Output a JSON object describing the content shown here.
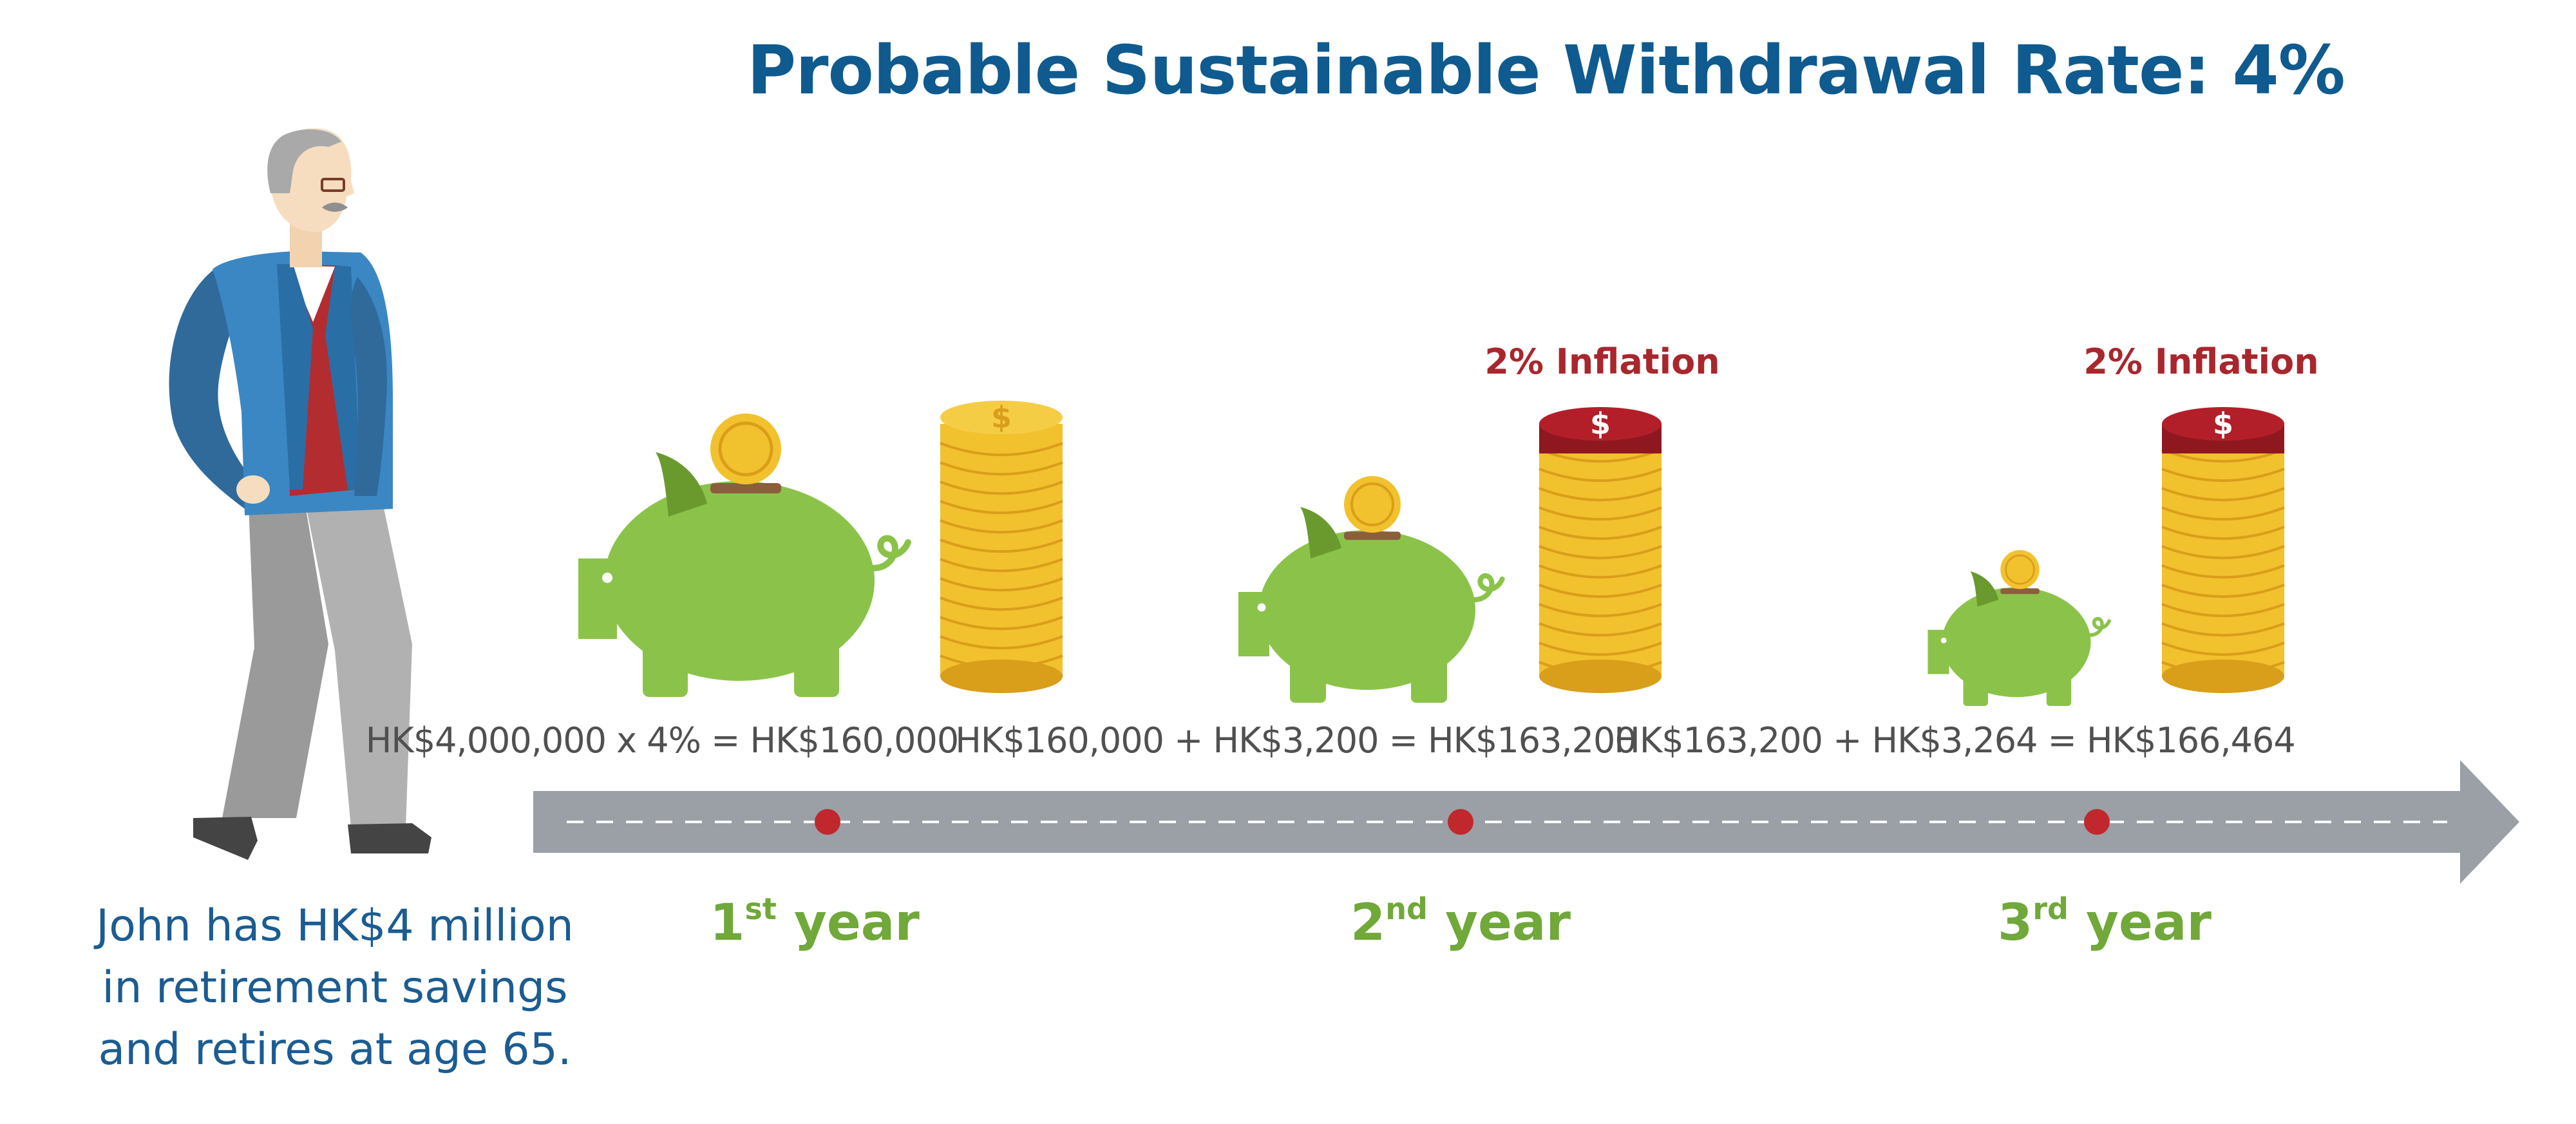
{
  "title": "Probable Sustainable Withdrawal Rate: 4%",
  "person": {
    "caption_lines": [
      "John has HK$4 million",
      "in retirement savings",
      "and retires at age 65."
    ]
  },
  "years": [
    {
      "ordinal": "1",
      "suffix": "st",
      "word": "year",
      "formula": "HK$4,000,000 x 4% = HK$160,000",
      "inflation_label": "",
      "piggy_scale": 1.0
    },
    {
      "ordinal": "2",
      "suffix": "nd",
      "word": "year",
      "formula": "HK$160,000 + HK$3,200 = HK$163,200",
      "inflation_label": "2% Inflation",
      "piggy_scale": 0.8
    },
    {
      "ordinal": "3",
      "suffix": "rd",
      "word": "year",
      "formula": "HK$163,200 + HK$3,264 = HK$166,464",
      "inflation_label": "2% Inflation",
      "piggy_scale": 0.55
    }
  ],
  "colors": {
    "title": "#0f5a8e",
    "caption": "#1b5c92",
    "pig": "#8bc34a",
    "pig_dark": "#6a9a2e",
    "coin": "#f2c12e",
    "coin_dark": "#d99e1a",
    "coin_top": "#f5cd45",
    "inflation_coin": "#b31f28",
    "inflation_text": "#a8272d",
    "road": "#9aa0a6",
    "milestone": "#c0282e",
    "year_label": "#70a83a",
    "formula": "#505050"
  },
  "icons": [
    "person-icon",
    "piggy-bank-icon",
    "coin-stack-icon",
    "timeline-arrow-icon",
    "milestone-dot-icon"
  ]
}
